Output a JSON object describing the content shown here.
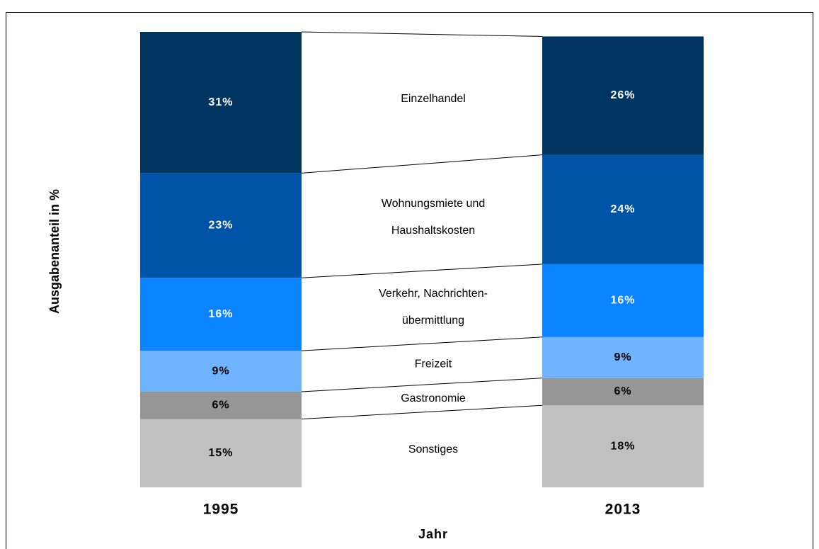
{
  "chart_data": {
    "type": "stacked-bar",
    "ylabel": "Ausgabenanteil in %",
    "xlabel": "Jahr",
    "categories": [
      "1995",
      "2013"
    ],
    "ylim": [
      0,
      100
    ],
    "series": [
      {
        "name": [
          "Sonstiges"
        ],
        "color": "#c0c0c0",
        "values": [
          15,
          18
        ],
        "value_labels": [
          "15%",
          "18%"
        ]
      },
      {
        "name": [
          "Gastronomie"
        ],
        "color": "#969696",
        "values": [
          6,
          6
        ],
        "value_labels": [
          "6%",
          "6%"
        ]
      },
      {
        "name": [
          "Freizeit"
        ],
        "color": "#70b4ff",
        "values": [
          9,
          9
        ],
        "value_labels": [
          "9%",
          "9%"
        ]
      },
      {
        "name": [
          "Verkehr, Nachrichten-",
          "übermittlung"
        ],
        "color": "#0a84ff",
        "values": [
          16,
          16
        ],
        "value_labels": [
          "16%",
          "16%"
        ]
      },
      {
        "name": [
          "Wohnungsmiete und",
          "Haushaltskosten"
        ],
        "color": "#0054a8",
        "values": [
          23,
          24
        ],
        "value_labels": [
          "23%",
          "24%"
        ]
      },
      {
        "name": [
          "Einzelhandel"
        ],
        "color": "#003562",
        "values": [
          31,
          26
        ],
        "value_labels": [
          "31%",
          "26%"
        ]
      }
    ]
  }
}
